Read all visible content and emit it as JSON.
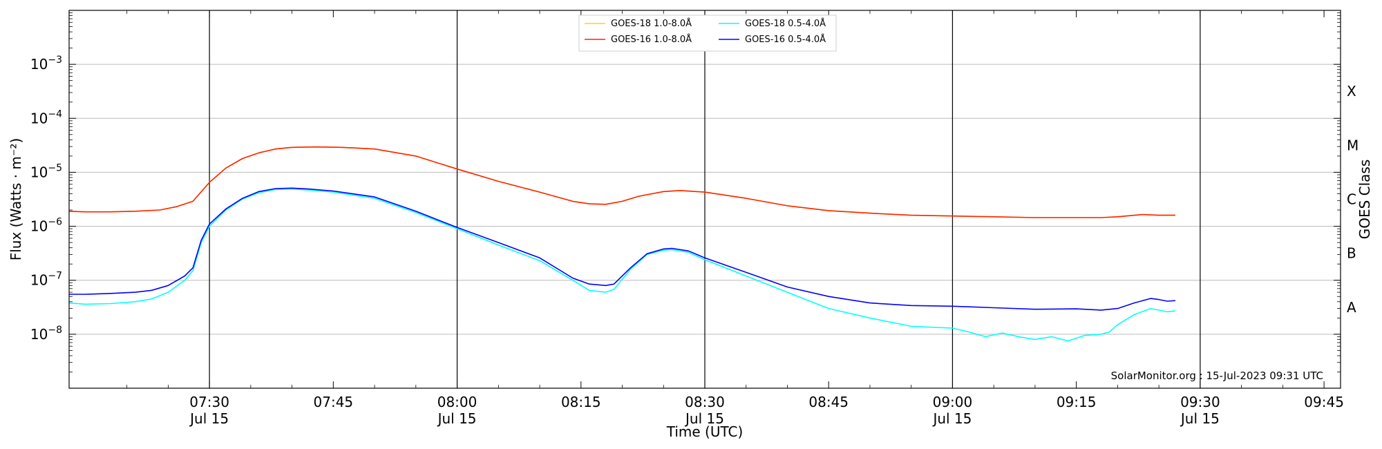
{
  "chart_data": {
    "type": "line",
    "xlabel": "Time (UTC)",
    "ylabel": "Flux (Watts · m⁻²)",
    "y2label": "GOES Class",
    "yscale": "log",
    "xlim": [
      "07:13",
      "09:47"
    ],
    "ylim": [
      1e-09,
      0.01
    ],
    "grid": "horizontal",
    "legend_position": "top-center",
    "footer": "SolarMonitor.org : 15-Jul-2023 09:31 UTC",
    "x_ticks": [
      {
        "time": "07:30",
        "label": "07:30",
        "sublabel": "Jul 15"
      },
      {
        "time": "07:45",
        "label": "07:45",
        "sublabel": ""
      },
      {
        "time": "08:00",
        "label": "08:00",
        "sublabel": "Jul 15"
      },
      {
        "time": "08:15",
        "label": "08:15",
        "sublabel": ""
      },
      {
        "time": "08:30",
        "label": "08:30",
        "sublabel": "Jul 15"
      },
      {
        "time": "08:45",
        "label": "08:45",
        "sublabel": ""
      },
      {
        "time": "09:00",
        "label": "09:00",
        "sublabel": "Jul 15"
      },
      {
        "time": "09:15",
        "label": "09:15",
        "sublabel": ""
      },
      {
        "time": "09:30",
        "label": "09:30",
        "sublabel": "Jul 15"
      },
      {
        "time": "09:45",
        "label": "09:45",
        "sublabel": ""
      }
    ],
    "vlines": [
      "07:30",
      "08:00",
      "08:30",
      "09:00",
      "09:30"
    ],
    "y_ticks": [
      {
        "value": 1e-08,
        "base": "10",
        "exp": "−8"
      },
      {
        "value": 1e-07,
        "base": "10",
        "exp": "−7"
      },
      {
        "value": 1e-06,
        "base": "10",
        "exp": "−6"
      },
      {
        "value": 1e-05,
        "base": "10",
        "exp": "−5"
      },
      {
        "value": 0.0001,
        "base": "10",
        "exp": "−4"
      },
      {
        "value": 0.001,
        "base": "10",
        "exp": "−3"
      }
    ],
    "goes_classes": [
      {
        "label": "A",
        "value": 3.16e-08
      },
      {
        "label": "B",
        "value": 3.16e-07
      },
      {
        "label": "C",
        "value": 3.16e-06
      },
      {
        "label": "M",
        "value": 3.16e-05
      },
      {
        "label": "X",
        "value": 0.000316
      }
    ],
    "legend": [
      {
        "name": "GOES-18 1.0-8.0Å",
        "color": "#ffd700"
      },
      {
        "name": "GOES-16 1.0-8.0Å",
        "color": "#ff2200"
      },
      {
        "name": "GOES-18 0.5-4.0Å",
        "color": "#00ffff"
      },
      {
        "name": "GOES-16 0.5-4.0Å",
        "color": "#0000ff"
      }
    ],
    "series": [
      {
        "name": "GOES-18 1.0-8.0Å",
        "color": "#ffd700",
        "points": [
          [
            "07:13",
            1.9e-06
          ],
          [
            "07:15",
            1.85e-06
          ],
          [
            "07:18",
            1.85e-06
          ],
          [
            "07:21",
            1.9e-06
          ],
          [
            "07:24",
            2e-06
          ],
          [
            "07:26",
            2.3e-06
          ],
          [
            "07:28",
            2.9e-06
          ],
          [
            "07:30",
            6.5e-06
          ],
          [
            "07:32",
            1.2e-05
          ],
          [
            "07:34",
            1.8e-05
          ],
          [
            "07:36",
            2.3e-05
          ],
          [
            "07:38",
            2.7e-05
          ],
          [
            "07:40",
            2.9e-05
          ],
          [
            "07:43",
            2.95e-05
          ],
          [
            "07:46",
            2.9e-05
          ],
          [
            "07:50",
            2.7e-05
          ],
          [
            "07:55",
            2e-05
          ],
          [
            "08:00",
            1.15e-05
          ],
          [
            "08:05",
            6.8e-06
          ],
          [
            "08:10",
            4.3e-06
          ],
          [
            "08:14",
            2.9e-06
          ],
          [
            "08:16",
            2.6e-06
          ],
          [
            "08:18",
            2.55e-06
          ],
          [
            "08:20",
            2.9e-06
          ],
          [
            "08:22",
            3.6e-06
          ],
          [
            "08:25",
            4.4e-06
          ],
          [
            "08:27",
            4.6e-06
          ],
          [
            "08:30",
            4.3e-06
          ],
          [
            "08:35",
            3.3e-06
          ],
          [
            "08:40",
            2.4e-06
          ],
          [
            "08:45",
            1.95e-06
          ],
          [
            "08:50",
            1.75e-06
          ],
          [
            "08:55",
            1.6e-06
          ],
          [
            "09:00",
            1.55e-06
          ],
          [
            "09:05",
            1.5e-06
          ],
          [
            "09:10",
            1.45e-06
          ],
          [
            "09:15",
            1.45e-06
          ],
          [
            "09:18",
            1.45e-06
          ],
          [
            "09:20",
            1.5e-06
          ],
          [
            "09:23",
            1.65e-06
          ],
          [
            "09:25",
            1.6e-06
          ],
          [
            "09:27",
            1.6e-06
          ]
        ]
      },
      {
        "name": "GOES-16 1.0-8.0Å",
        "color": "#ff2200",
        "points": [
          [
            "07:13",
            1.9e-06
          ],
          [
            "07:15",
            1.85e-06
          ],
          [
            "07:18",
            1.85e-06
          ],
          [
            "07:21",
            1.9e-06
          ],
          [
            "07:24",
            2e-06
          ],
          [
            "07:26",
            2.3e-06
          ],
          [
            "07:28",
            2.9e-06
          ],
          [
            "07:30",
            6.5e-06
          ],
          [
            "07:32",
            1.2e-05
          ],
          [
            "07:34",
            1.8e-05
          ],
          [
            "07:36",
            2.3e-05
          ],
          [
            "07:38",
            2.7e-05
          ],
          [
            "07:40",
            2.9e-05
          ],
          [
            "07:43",
            2.95e-05
          ],
          [
            "07:46",
            2.9e-05
          ],
          [
            "07:50",
            2.7e-05
          ],
          [
            "07:55",
            2e-05
          ],
          [
            "08:00",
            1.15e-05
          ],
          [
            "08:05",
            6.8e-06
          ],
          [
            "08:10",
            4.3e-06
          ],
          [
            "08:14",
            2.9e-06
          ],
          [
            "08:16",
            2.6e-06
          ],
          [
            "08:18",
            2.55e-06
          ],
          [
            "08:20",
            2.9e-06
          ],
          [
            "08:22",
            3.6e-06
          ],
          [
            "08:25",
            4.4e-06
          ],
          [
            "08:27",
            4.6e-06
          ],
          [
            "08:30",
            4.3e-06
          ],
          [
            "08:35",
            3.3e-06
          ],
          [
            "08:40",
            2.4e-06
          ],
          [
            "08:45",
            1.95e-06
          ],
          [
            "08:50",
            1.75e-06
          ],
          [
            "08:55",
            1.6e-06
          ],
          [
            "09:00",
            1.55e-06
          ],
          [
            "09:05",
            1.5e-06
          ],
          [
            "09:10",
            1.45e-06
          ],
          [
            "09:15",
            1.45e-06
          ],
          [
            "09:18",
            1.45e-06
          ],
          [
            "09:20",
            1.5e-06
          ],
          [
            "09:23",
            1.65e-06
          ],
          [
            "09:25",
            1.6e-06
          ],
          [
            "09:27",
            1.6e-06
          ]
        ]
      },
      {
        "name": "GOES-18 0.5-4.0Å",
        "color": "#00ffff",
        "points": [
          [
            "07:13",
            3.8e-08
          ],
          [
            "07:15",
            3.6e-08
          ],
          [
            "07:18",
            3.7e-08
          ],
          [
            "07:21",
            4e-08
          ],
          [
            "07:23",
            4.5e-08
          ],
          [
            "07:25",
            6e-08
          ],
          [
            "07:27",
            1e-07
          ],
          [
            "07:28",
            1.5e-07
          ],
          [
            "07:29",
            5e-07
          ],
          [
            "07:30",
            1e-06
          ],
          [
            "07:32",
            2e-06
          ],
          [
            "07:34",
            3.2e-06
          ],
          [
            "07:36",
            4.2e-06
          ],
          [
            "07:38",
            4.8e-06
          ],
          [
            "07:40",
            4.9e-06
          ],
          [
            "07:42",
            4.7e-06
          ],
          [
            "07:45",
            4.3e-06
          ],
          [
            "07:50",
            3.3e-06
          ],
          [
            "07:55",
            1.8e-06
          ],
          [
            "08:00",
            9e-07
          ],
          [
            "08:05",
            4.5e-07
          ],
          [
            "08:10",
            2.3e-07
          ],
          [
            "08:14",
            1e-07
          ],
          [
            "08:16",
            6.5e-08
          ],
          [
            "08:18",
            6e-08
          ],
          [
            "08:19",
            6.8e-08
          ],
          [
            "08:21",
            1.6e-07
          ],
          [
            "08:23",
            3e-07
          ],
          [
            "08:25",
            3.6e-07
          ],
          [
            "08:26",
            3.7e-07
          ],
          [
            "08:28",
            3.3e-07
          ],
          [
            "08:30",
            2.4e-07
          ],
          [
            "08:35",
            1.2e-07
          ],
          [
            "08:40",
            6e-08
          ],
          [
            "08:45",
            3e-08
          ],
          [
            "08:50",
            2e-08
          ],
          [
            "08:55",
            1.4e-08
          ],
          [
            "09:00",
            1.3e-08
          ],
          [
            "09:02",
            1.1e-08
          ],
          [
            "09:04",
            9e-09
          ],
          [
            "09:06",
            1.05e-08
          ],
          [
            "09:08",
            9e-09
          ],
          [
            "09:10",
            8e-09
          ],
          [
            "09:12",
            9e-09
          ],
          [
            "09:14",
            7.5e-09
          ],
          [
            "09:16",
            9.5e-09
          ],
          [
            "09:18",
            1e-08
          ],
          [
            "09:19",
            1.1e-08
          ],
          [
            "09:20",
            1.5e-08
          ],
          [
            "09:22",
            2.3e-08
          ],
          [
            "09:24",
            3e-08
          ],
          [
            "09:25",
            2.8e-08
          ],
          [
            "09:26",
            2.6e-08
          ],
          [
            "09:27",
            2.7e-08
          ]
        ]
      },
      {
        "name": "GOES-16 0.5-4.0Å",
        "color": "#0000ff",
        "points": [
          [
            "07:13",
            5.5e-08
          ],
          [
            "07:15",
            5.5e-08
          ],
          [
            "07:18",
            5.7e-08
          ],
          [
            "07:21",
            6e-08
          ],
          [
            "07:23",
            6.5e-08
          ],
          [
            "07:25",
            8e-08
          ],
          [
            "07:27",
            1.2e-07
          ],
          [
            "07:28",
            1.7e-07
          ],
          [
            "07:29",
            5.5e-07
          ],
          [
            "07:30",
            1.1e-06
          ],
          [
            "07:32",
            2.1e-06
          ],
          [
            "07:34",
            3.3e-06
          ],
          [
            "07:36",
            4.4e-06
          ],
          [
            "07:38",
            5e-06
          ],
          [
            "07:40",
            5.1e-06
          ],
          [
            "07:42",
            4.9e-06
          ],
          [
            "07:45",
            4.5e-06
          ],
          [
            "07:50",
            3.5e-06
          ],
          [
            "07:55",
            1.9e-06
          ],
          [
            "08:00",
            9.5e-07
          ],
          [
            "08:05",
            5e-07
          ],
          [
            "08:10",
            2.6e-07
          ],
          [
            "08:14",
            1.1e-07
          ],
          [
            "08:16",
            8.5e-08
          ],
          [
            "08:18",
            8e-08
          ],
          [
            "08:19",
            8.5e-08
          ],
          [
            "08:21",
            1.7e-07
          ],
          [
            "08:23",
            3.1e-07
          ],
          [
            "08:25",
            3.8e-07
          ],
          [
            "08:26",
            3.9e-07
          ],
          [
            "08:28",
            3.5e-07
          ],
          [
            "08:30",
            2.6e-07
          ],
          [
            "08:35",
            1.4e-07
          ],
          [
            "08:40",
            7.5e-08
          ],
          [
            "08:45",
            5e-08
          ],
          [
            "08:50",
            3.8e-08
          ],
          [
            "08:55",
            3.4e-08
          ],
          [
            "09:00",
            3.3e-08
          ],
          [
            "09:05",
            3.1e-08
          ],
          [
            "09:10",
            2.9e-08
          ],
          [
            "09:15",
            2.95e-08
          ],
          [
            "09:18",
            2.8e-08
          ],
          [
            "09:20",
            3e-08
          ],
          [
            "09:22",
            3.8e-08
          ],
          [
            "09:24",
            4.6e-08
          ],
          [
            "09:25",
            4.4e-08
          ],
          [
            "09:26",
            4.1e-08
          ],
          [
            "09:27",
            4.2e-08
          ]
        ]
      }
    ]
  }
}
